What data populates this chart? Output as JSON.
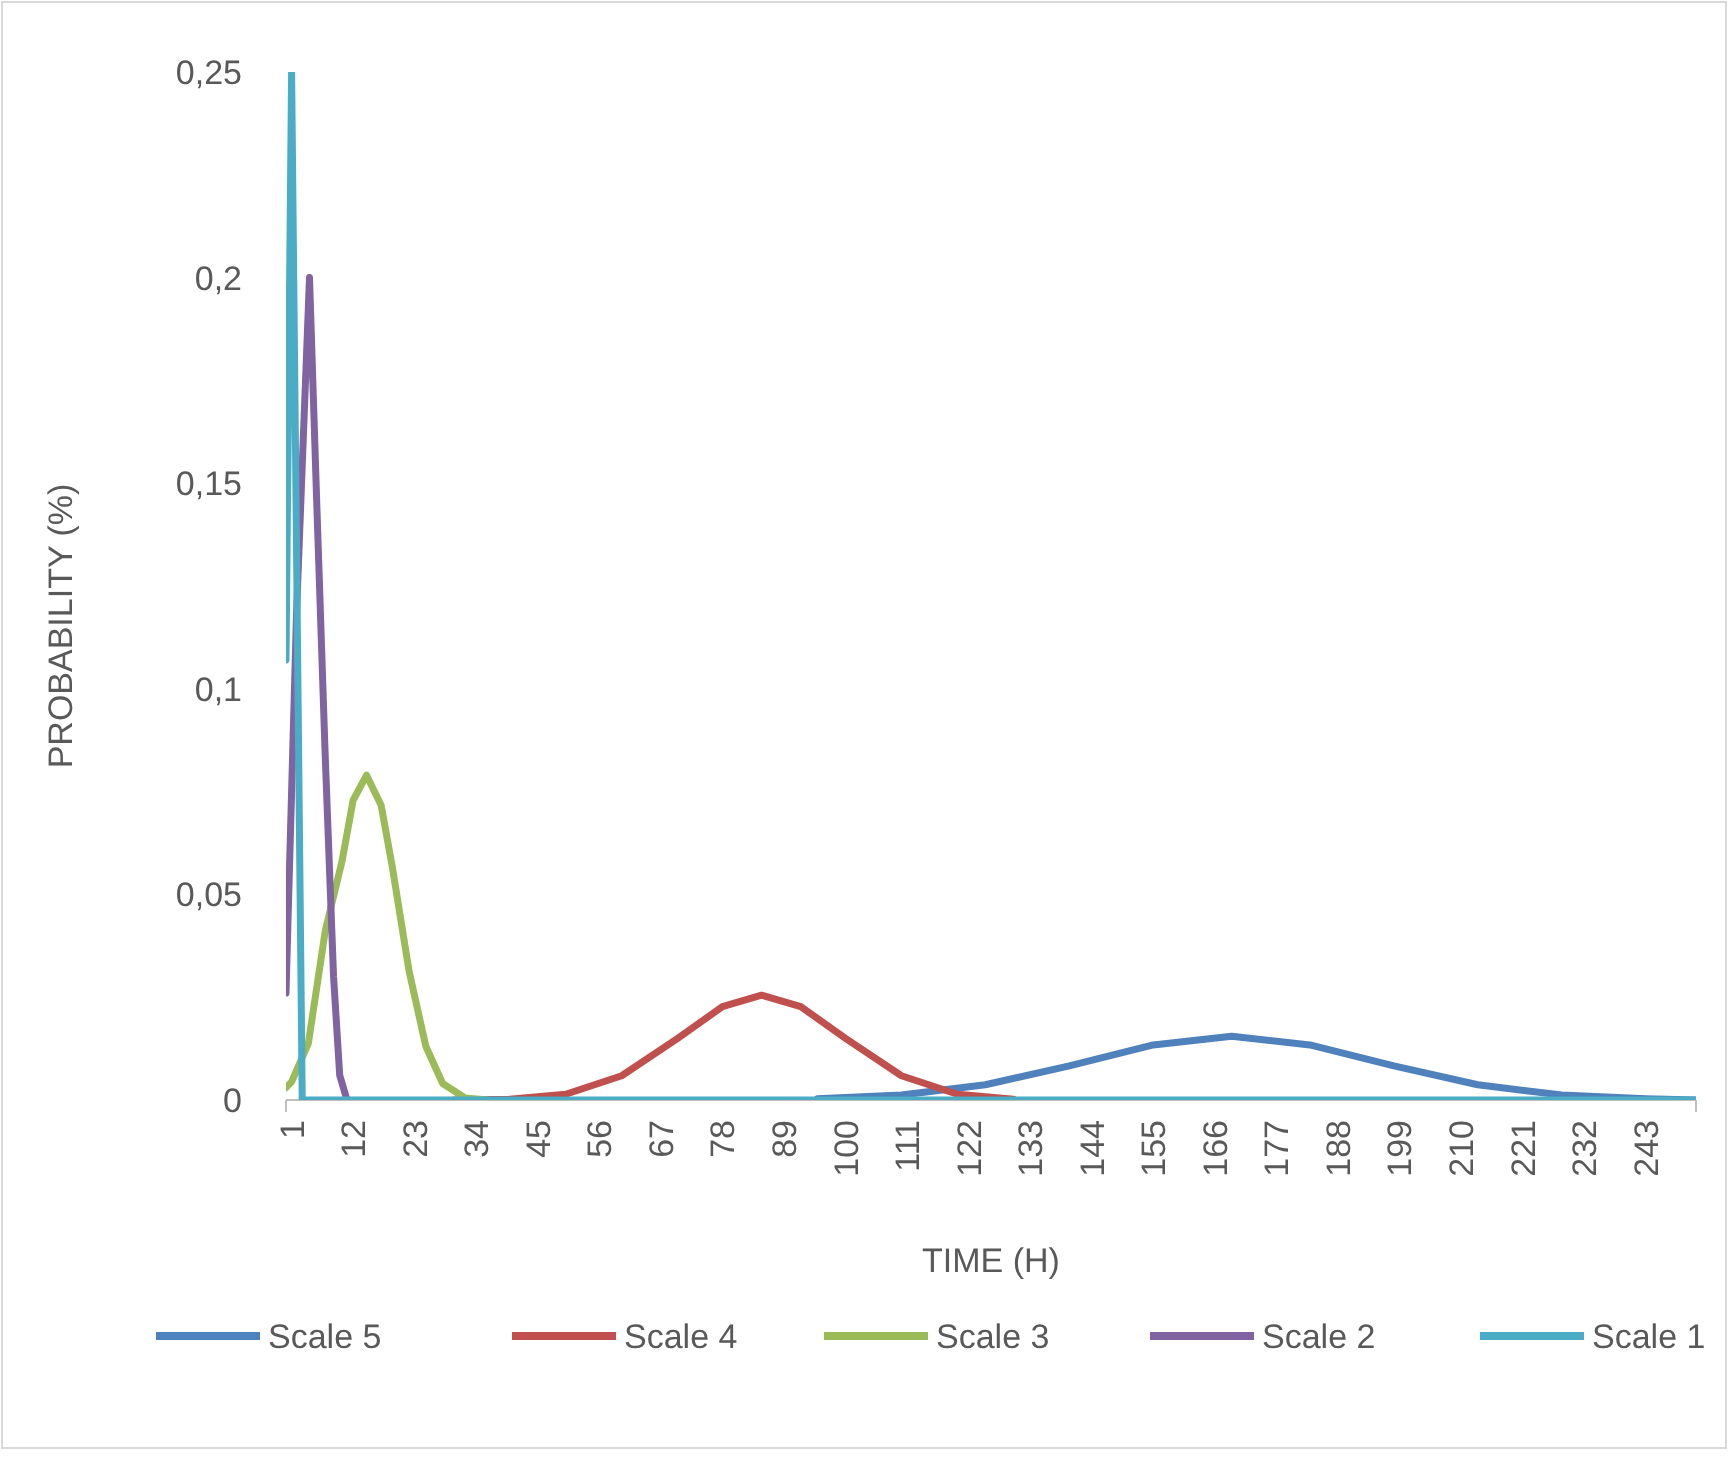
{
  "chart_data": {
    "type": "line",
    "xlabel": "TIME (H)",
    "ylabel": "PROBABILITY (%)",
    "xlim": [
      0,
      252
    ],
    "ylim": [
      0,
      0.25
    ],
    "xticks": [
      1,
      12,
      23,
      34,
      45,
      56,
      67,
      78,
      89,
      100,
      111,
      122,
      133,
      144,
      155,
      166,
      177,
      188,
      199,
      210,
      221,
      232,
      243
    ],
    "yticks": [
      {
        "value": 0,
        "label": "0"
      },
      {
        "value": 0.05,
        "label": "0,05"
      },
      {
        "value": 0.1,
        "label": "0,1"
      },
      {
        "value": 0.15,
        "label": "0,15"
      },
      {
        "value": 0.2,
        "label": "0,2"
      },
      {
        "value": 0.25,
        "label": "0,25"
      }
    ],
    "grid": false,
    "legend": "bottom",
    "line_style": "solid",
    "marker": "none",
    "series": [
      {
        "name": "Scale 5",
        "color": "#4f81bd",
        "x": [
          95,
          110,
          125,
          140,
          155,
          169,
          183,
          198,
          213,
          228,
          243,
          252
        ],
        "values": [
          0.0003,
          0.0012,
          0.0037,
          0.0083,
          0.0134,
          0.0155,
          0.0134,
          0.0083,
          0.0037,
          0.0012,
          0.0003,
          0
        ]
      },
      {
        "name": "Scale 4",
        "color": "#c0504d",
        "x": [
          30,
          40,
          50,
          60,
          70,
          78,
          85,
          92,
          100,
          110,
          120,
          130
        ],
        "values": [
          0,
          0.0002,
          0.0014,
          0.0059,
          0.015,
          0.0227,
          0.0255,
          0.0227,
          0.015,
          0.0059,
          0.0014,
          0.0002
        ]
      },
      {
        "name": "Scale 3",
        "color": "#9bbb59",
        "x": [
          0,
          1,
          4,
          7,
          10,
          12,
          14.4,
          17,
          19,
          22,
          25,
          28,
          32,
          36
        ],
        "values": [
          0.003,
          0.0044,
          0.0138,
          0.041,
          0.058,
          0.0729,
          0.079,
          0.0717,
          0.0567,
          0.0313,
          0.013,
          0.004,
          0.0005,
          0
        ]
      },
      {
        "name": "Scale 2",
        "color": "#8064a2",
        "x": [
          0,
          1.9,
          4.2,
          5.5,
          7,
          8.5,
          9.6,
          10.9
        ],
        "values": [
          0.026,
          0.119,
          0.2,
          0.145,
          0.084,
          0.03,
          0.006,
          0
        ]
      },
      {
        "name": "Scale 1",
        "color": "#4bacc6",
        "x": [
          0,
          1,
          2.9,
          252
        ],
        "values": [
          0.107,
          0.25,
          0,
          0
        ]
      }
    ]
  }
}
